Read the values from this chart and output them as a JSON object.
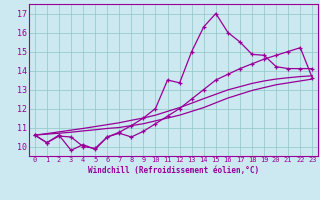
{
  "xlabel": "Windchill (Refroidissement éolien,°C)",
  "bg_color": "#cce8f0",
  "grid_color": "#99cccc",
  "line_color": "#990099",
  "xlim": [
    -0.5,
    23.5
  ],
  "ylim": [
    9.5,
    17.5
  ],
  "xticks": [
    0,
    1,
    2,
    3,
    4,
    5,
    6,
    7,
    8,
    9,
    10,
    11,
    12,
    13,
    14,
    15,
    16,
    17,
    18,
    19,
    20,
    21,
    22,
    23
  ],
  "yticks": [
    10,
    11,
    12,
    13,
    14,
    15,
    16,
    17
  ],
  "line1_x": [
    0,
    1,
    2,
    3,
    4,
    5,
    6,
    7,
    8,
    9,
    10,
    11,
    12,
    13,
    14,
    15,
    16,
    17,
    18,
    19,
    20,
    21,
    22,
    23
  ],
  "line1_y": [
    10.6,
    10.2,
    10.6,
    9.8,
    10.1,
    9.85,
    10.5,
    10.75,
    11.1,
    11.5,
    12.0,
    13.5,
    13.35,
    15.0,
    16.3,
    17.0,
    16.0,
    15.5,
    14.85,
    14.8,
    14.2,
    14.1,
    14.1,
    14.1
  ],
  "line2_x": [
    0,
    1,
    2,
    3,
    4,
    5,
    6,
    7,
    8,
    9,
    10,
    11,
    12,
    13,
    14,
    15,
    16,
    17,
    18,
    19,
    20,
    21,
    22,
    23
  ],
  "line2_y": [
    10.6,
    10.2,
    10.55,
    10.5,
    10.0,
    9.9,
    10.5,
    10.7,
    10.5,
    10.8,
    11.2,
    11.6,
    12.0,
    12.5,
    13.0,
    13.5,
    13.8,
    14.1,
    14.35,
    14.6,
    14.8,
    15.0,
    15.2,
    13.6
  ],
  "line3_x": [
    0,
    1,
    2,
    3,
    4,
    5,
    6,
    7,
    8,
    9,
    10,
    11,
    12,
    13,
    14,
    15,
    16,
    17,
    18,
    19,
    20,
    21,
    22,
    23
  ],
  "line3_y": [
    10.6,
    10.65,
    10.7,
    10.75,
    10.82,
    10.88,
    10.95,
    11.0,
    11.1,
    11.2,
    11.35,
    11.5,
    11.65,
    11.85,
    12.05,
    12.3,
    12.55,
    12.75,
    12.95,
    13.1,
    13.25,
    13.35,
    13.45,
    13.55
  ],
  "line4_x": [
    0,
    1,
    2,
    3,
    4,
    5,
    6,
    7,
    8,
    9,
    10,
    11,
    12,
    13,
    14,
    15,
    16,
    17,
    18,
    19,
    20,
    21,
    22,
    23
  ],
  "line4_y": [
    10.6,
    10.68,
    10.77,
    10.86,
    10.95,
    11.05,
    11.15,
    11.25,
    11.38,
    11.5,
    11.65,
    11.85,
    12.05,
    12.28,
    12.52,
    12.75,
    12.98,
    13.15,
    13.32,
    13.45,
    13.55,
    13.62,
    13.68,
    13.72
  ]
}
